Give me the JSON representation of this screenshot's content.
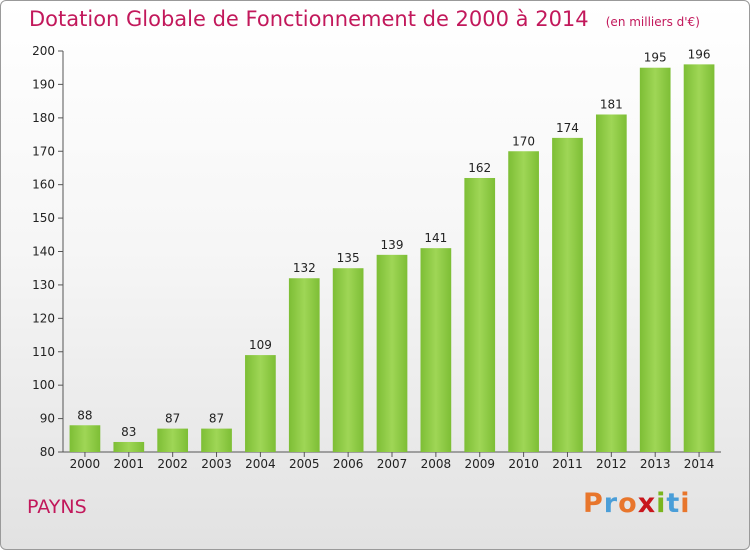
{
  "header": {
    "title": "Dotation Globale de Fonctionnement de 2000 à 2014",
    "unit": "(en milliers d'€)"
  },
  "commune": "PAYNS",
  "logo": {
    "letters": [
      "P",
      "r",
      "o",
      "x",
      "i",
      "t",
      "i"
    ],
    "colors": [
      "#e8762c",
      "#4a9ed8",
      "#e8762c",
      "#c8161d",
      "#7ab51d",
      "#4a9ed8",
      "#e8762c"
    ]
  },
  "colors": {
    "bar": "#7dbe35",
    "bar_light": "#9fd656",
    "title": "#c2185b"
  },
  "chart_data": {
    "type": "bar",
    "title": "Dotation Globale de Fonctionnement de 2000 à 2014",
    "subtitle": "(en milliers d'€)",
    "xlabel": "",
    "ylabel": "",
    "categories": [
      "2000",
      "2001",
      "2002",
      "2003",
      "2004",
      "2005",
      "2006",
      "2007",
      "2008",
      "2009",
      "2010",
      "2011",
      "2012",
      "2013",
      "2014"
    ],
    "values": [
      88,
      83,
      87,
      87,
      109,
      132,
      135,
      139,
      141,
      162,
      170,
      174,
      181,
      195,
      196
    ],
    "ylim": [
      80,
      200
    ],
    "yticks": [
      80,
      90,
      100,
      110,
      120,
      130,
      140,
      150,
      160,
      170,
      180,
      190,
      200
    ],
    "grid": false,
    "legend": "none"
  }
}
